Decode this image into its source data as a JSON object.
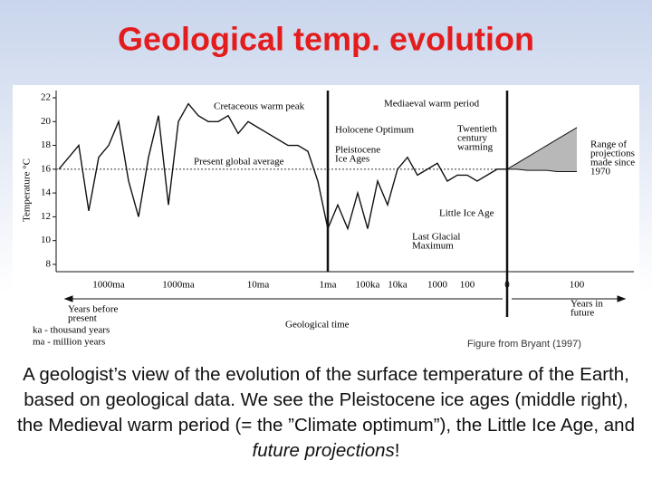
{
  "slide_title": "Geological temp. evolution",
  "chart_data": {
    "type": "line",
    "y_label": "Temperature °C",
    "categories": [
      null,
      null,
      null,
      null,
      null,
      "1000ma",
      null,
      null,
      null,
      null,
      null,
      null,
      "1000ma",
      null,
      null,
      null,
      null,
      null,
      null,
      null,
      "10ma",
      null,
      null,
      null,
      null,
      null,
      null,
      "1ma",
      null,
      null,
      null,
      "100ka",
      null,
      null,
      "10ka",
      null,
      null,
      null,
      "1000",
      null,
      null,
      "100",
      null,
      null,
      null,
      "0",
      null,
      null,
      null,
      null,
      null,
      null,
      "100"
    ],
    "series": [
      {
        "name": "Temperature",
        "color": "#111111",
        "values": [
          16,
          17,
          18,
          12.5,
          17,
          18,
          20,
          15,
          12,
          17,
          20.5,
          13,
          20,
          21.5,
          20.5,
          20,
          20,
          20.5,
          19,
          20,
          19.5,
          19,
          18.5,
          18,
          18,
          17.5,
          15,
          11,
          13,
          11,
          14,
          11,
          15,
          13,
          16,
          17,
          15.5,
          16,
          16.5,
          15,
          15.5,
          15.5,
          15,
          15.5,
          16,
          16,
          null,
          null,
          null,
          null,
          null,
          null,
          null
        ]
      },
      {
        "name": "Projection upper",
        "color": "#111111",
        "values": [
          null,
          null,
          null,
          null,
          null,
          null,
          null,
          null,
          null,
          null,
          null,
          null,
          null,
          null,
          null,
          null,
          null,
          null,
          null,
          null,
          null,
          null,
          null,
          null,
          null,
          null,
          null,
          null,
          null,
          null,
          null,
          null,
          null,
          null,
          null,
          null,
          null,
          null,
          null,
          null,
          null,
          null,
          null,
          null,
          null,
          16,
          16.5,
          17,
          17.5,
          18,
          18.5,
          19,
          19.5
        ]
      },
      {
        "name": "Projection lower",
        "color": "#111111",
        "values": [
          null,
          null,
          null,
          null,
          null,
          null,
          null,
          null,
          null,
          null,
          null,
          null,
          null,
          null,
          null,
          null,
          null,
          null,
          null,
          null,
          null,
          null,
          null,
          null,
          null,
          null,
          null,
          null,
          null,
          null,
          null,
          null,
          null,
          null,
          null,
          null,
          null,
          null,
          null,
          null,
          null,
          null,
          null,
          null,
          null,
          16,
          16,
          15.9,
          15.9,
          15.9,
          15.8,
          15.8,
          15.8
        ]
      }
    ],
    "ylim": [
      7,
      23
    ],
    "yticks": [
      8,
      10,
      12,
      14,
      16,
      18,
      20,
      22
    ],
    "reference_line": {
      "label": "Present global average",
      "value": 16
    },
    "annotations": [
      [
        "Cretaceous warm peak"
      ],
      [
        "Mediaeval warm period"
      ],
      [
        "Holocene Optimum"
      ],
      [
        "Pleistocene",
        "Ice Ages"
      ],
      [
        "Twentieth",
        "century",
        "warming"
      ],
      [
        "Range of",
        "projections",
        "made since",
        "1970"
      ],
      [
        "Little Ice Age"
      ],
      [
        "Last Glacial",
        "Maximum"
      ]
    ],
    "x_left_label": [
      "Years before",
      "present"
    ],
    "x_right_label": [
      "Years in",
      "future"
    ],
    "x_label": "Geological time",
    "legend_notes": [
      "ka - thousand years",
      "ma - million years"
    ],
    "source": "Figure from Bryant (1997)"
  },
  "caption": [
    "A geologist’s view of the evolution of the surface temperature of the Earth, based on geological data. We see the Pleistocene ice ages (middle right), the Medieval warm period (= the ”Climate optimum”), the Little Ice Age, and ",
    "future projections",
    "!"
  ]
}
